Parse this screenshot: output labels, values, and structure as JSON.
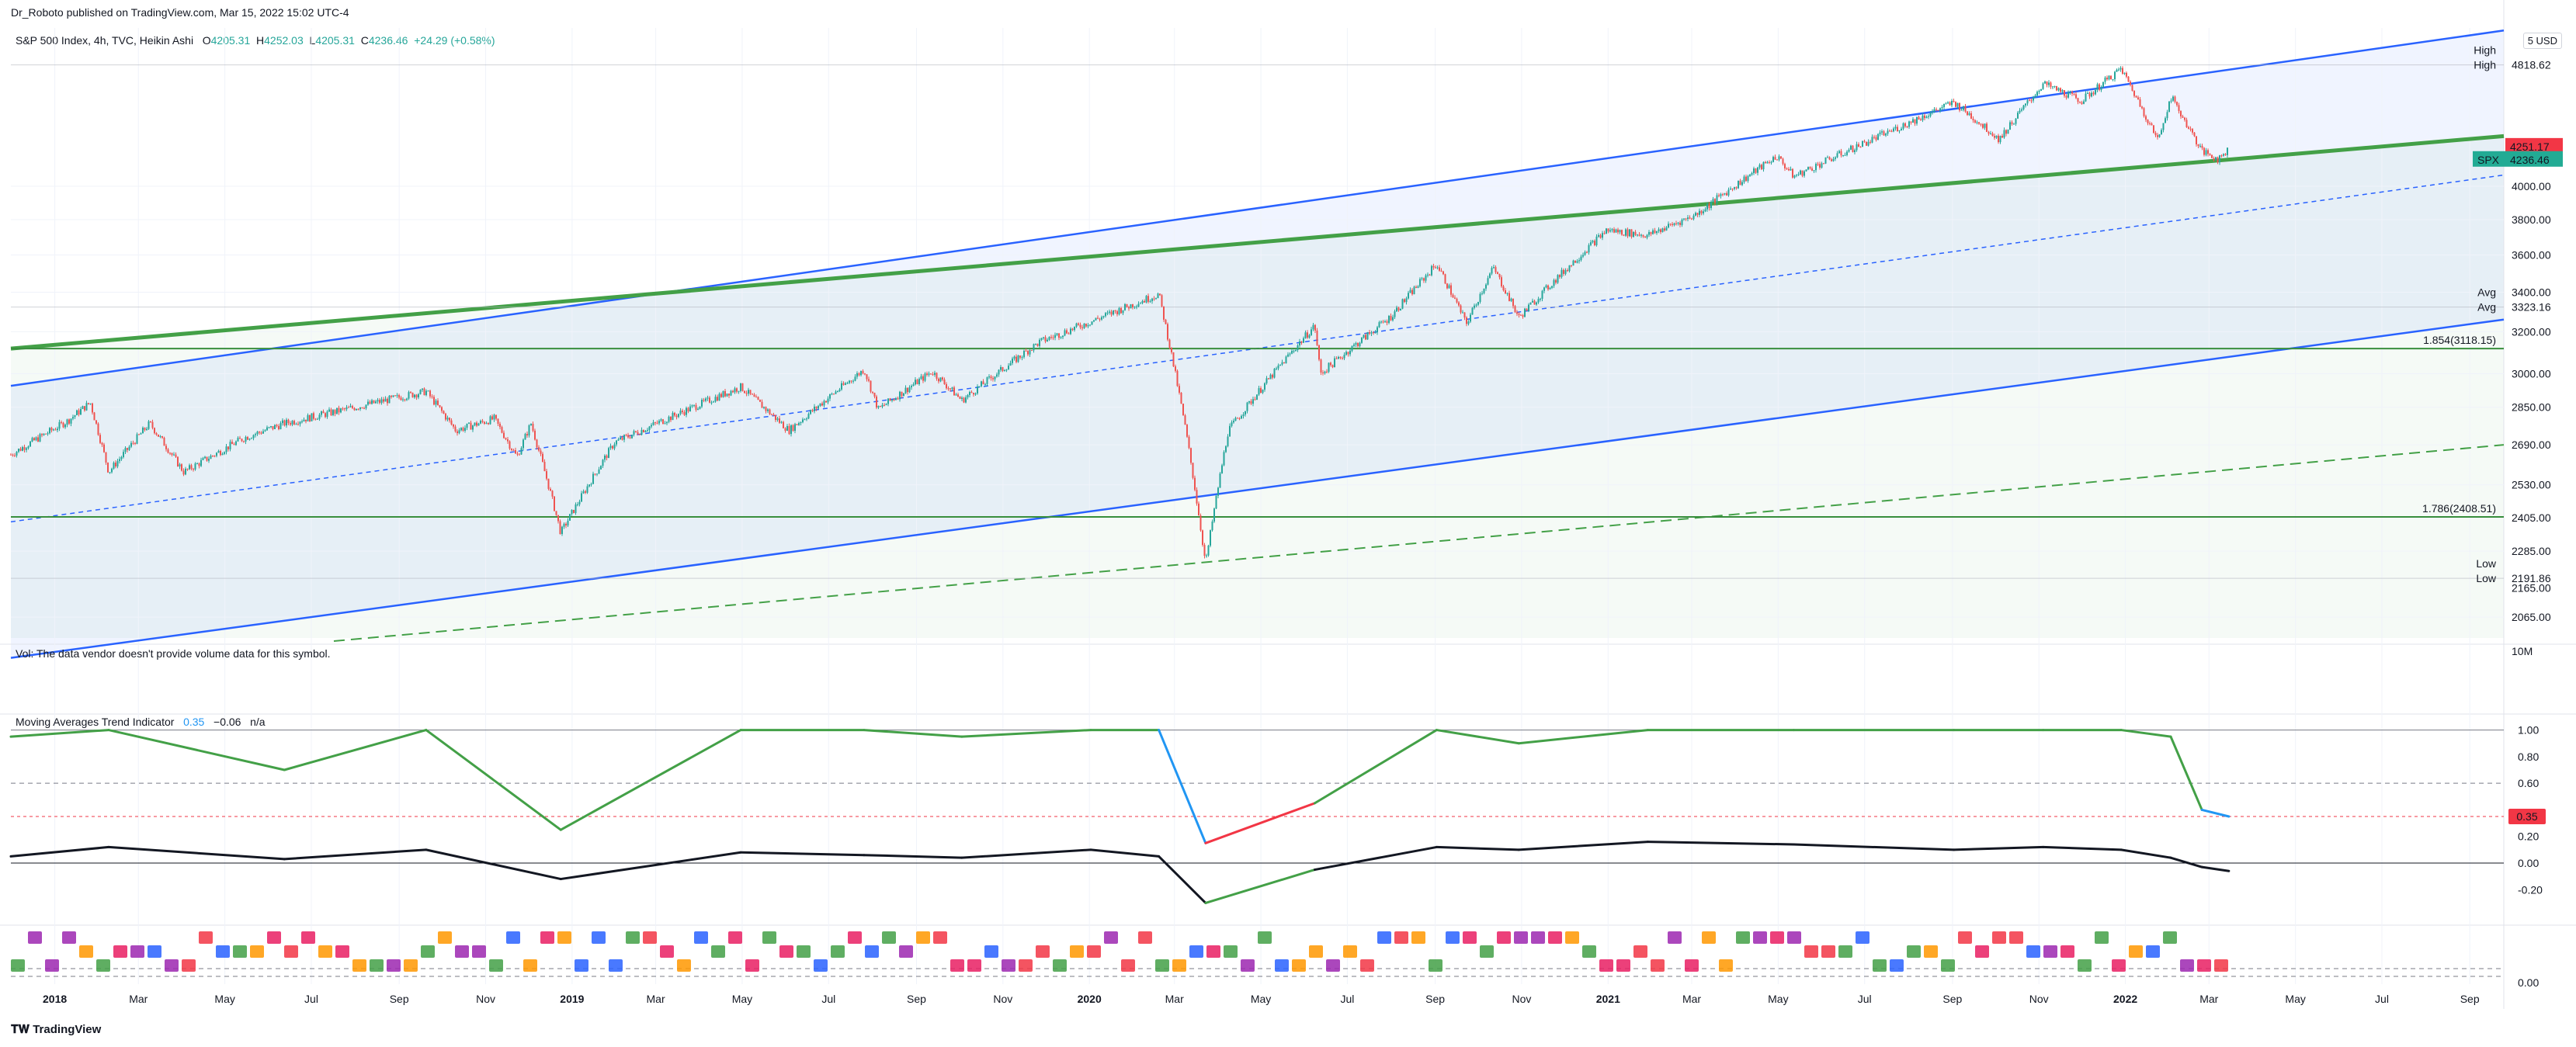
{
  "header": {
    "publisher": "Dr_Roboto published on TradingView.com, Mar 15, 2022 15:02 UTC-4",
    "symbol": "S&P 500 Index, 4h, TVC, Heikin Ashi",
    "ohlc": [
      {
        "k": "O",
        "v": "4205.31"
      },
      {
        "k": "H",
        "v": "4252.03"
      },
      {
        "k": "L",
        "v": "4205.31"
      },
      {
        "k": "C",
        "v": "4236.46"
      }
    ],
    "change": "+24.29 (+0.58%)",
    "currency": "USD",
    "currency_prefix": "5"
  },
  "volume": {
    "message": "Vol: The data vendor doesn't provide volume data for this symbol."
  },
  "indicator": {
    "name": "Moving Averages Trend Indicator",
    "v1": "0.35",
    "v2": "−0.06",
    "v3": "n/a",
    "current_label": "0.35"
  },
  "footer": {
    "brand": "TradingView"
  },
  "price_labels": {
    "high_tag": "High",
    "high_value": "4818.62",
    "current_red": "4251.17",
    "symbol_tag": "SPX",
    "symbol_value": "4236.46",
    "avg_tag": "Avg",
    "avg_value": "3323.16",
    "low_tag": "Low",
    "low_value": "2191.86",
    "fib1": "1.854(3118.15)",
    "fib2": "1.786(2408.51)",
    "volume_scale": "10M",
    "extra_low_label": "2165.00"
  },
  "colors": {
    "channel_blue": "#2962ff",
    "trend_green": "#43a047",
    "fib_green": "#388e3c",
    "candle_up": "#26a69a",
    "candle_down": "#ef5350",
    "red_label": "#f23645",
    "teal_label": "#22ab94"
  },
  "chart_data": {
    "type": "line",
    "title": "S&P 500 Index, 4h, TVC, Heikin Ashi",
    "x_ticks": [
      "2018",
      "Mar",
      "May",
      "Jul",
      "Sep",
      "Nov",
      "2019",
      "Mar",
      "May",
      "Jul",
      "Sep",
      "Nov",
      "2020",
      "Mar",
      "May",
      "Jul",
      "Sep",
      "Nov",
      "2021",
      "Mar",
      "May",
      "Jul",
      "Sep",
      "Nov",
      "2022",
      "Mar",
      "May",
      "Jul",
      "Sep"
    ],
    "x_range": [
      "2017-12",
      "2022-09"
    ],
    "price_axis_ticks": [
      "4000.00",
      "3800.00",
      "3600.00",
      "3400.00",
      "3200.00",
      "3000.00",
      "2850.00",
      "2690.00",
      "2530.00",
      "2405.00",
      "2285.00",
      "2065.00"
    ],
    "y_scale": "log",
    "ylim": [
      2000,
      5100
    ],
    "series": [
      {
        "name": "SPX",
        "x": [
          "2017-12-01",
          "2018-01-10",
          "2018-01-26",
          "2018-02-08",
          "2018-03-09",
          "2018-04-02",
          "2018-05-15",
          "2018-06-12",
          "2018-07-25",
          "2018-09-20",
          "2018-10-11",
          "2018-11-07",
          "2018-11-23",
          "2018-12-03",
          "2018-12-24",
          "2019-01-31",
          "2019-04-30",
          "2019-06-03",
          "2019-07-26",
          "2019-08-05",
          "2019-09-12",
          "2019-10-03",
          "2019-11-27",
          "2020-01-02",
          "2020-02-19",
          "2020-03-09",
          "2020-03-23",
          "2020-04-08",
          "2020-06-08",
          "2020-06-12",
          "2020-07-31",
          "2020-09-02",
          "2020-09-23",
          "2020-10-12",
          "2020-10-30",
          "2020-12-31",
          "2021-01-29",
          "2021-03-04",
          "2021-04-30",
          "2021-05-12",
          "2021-07-30",
          "2021-09-02",
          "2021-10-04",
          "2021-11-04",
          "2021-12-01",
          "2021-12-29",
          "2022-01-24",
          "2022-02-02",
          "2022-02-24",
          "2022-03-08",
          "2022-03-15"
        ],
        "y": [
          2650,
          2790,
          2870,
          2580,
          2780,
          2580,
          2720,
          2780,
          2840,
          2920,
          2750,
          2800,
          2640,
          2780,
          2350,
          2700,
          2940,
          2750,
          3020,
          2840,
          3010,
          2880,
          3150,
          3250,
          3390,
          2750,
          2240,
          2750,
          3230,
          3000,
          3270,
          3550,
          3240,
          3530,
          3270,
          3740,
          3710,
          3830,
          4190,
          4060,
          4400,
          4550,
          4300,
          4680,
          4560,
          4790,
          4290,
          4590,
          4220,
          4170,
          4236
        ]
      },
      {
        "name": "",
        "x": [
          "2017-12-01",
          "2018-02-08",
          "2018-06-12",
          "2018-09-20",
          "2018-12-24",
          "2019-04-30",
          "2019-07-26",
          "2019-10-03",
          "2020-01-02",
          "2020-02-19",
          "2020-03-23",
          "2020-06-08",
          "2020-09-02",
          "2020-10-30",
          "2021-01-29",
          "2021-05-12",
          "2021-09-02",
          "2021-11-04",
          "2021-12-29",
          "2022-02-02",
          "2022-02-24",
          "2022-03-15"
        ],
        "y": [
          0.95,
          1.0,
          0.7,
          1.0,
          0.25,
          1.0,
          1.0,
          0.95,
          1.0,
          1.0,
          0.15,
          0.45,
          1.0,
          0.9,
          1.0,
          1.0,
          1.0,
          1.0,
          1.0,
          0.95,
          0.4,
          0.35
        ]
      },
      {
        "name": "",
        "x": [
          "2017-12-01",
          "2018-02-08",
          "2018-06-12",
          "2018-09-20",
          "2018-12-24",
          "2019-04-30",
          "2019-07-26",
          "2019-10-03",
          "2020-01-02",
          "2020-02-19",
          "2020-03-23",
          "2020-06-08",
          "2020-09-02",
          "2020-10-30",
          "2021-01-29",
          "2021-05-12",
          "2021-09-02",
          "2021-11-04",
          "2021-12-29",
          "2022-02-02",
          "2022-02-24",
          "2022-03-15"
        ],
        "y": [
          0.05,
          0.12,
          0.03,
          0.1,
          -0.12,
          0.08,
          0.06,
          0.04,
          0.1,
          0.05,
          -0.3,
          -0.05,
          0.12,
          0.1,
          0.16,
          0.14,
          0.1,
          0.12,
          0.1,
          0.04,
          -0.03,
          -0.06
        ]
      }
    ],
    "indicator_axis_ticks": [
      "1.00",
      "0.80",
      "0.60",
      "0.20",
      "0.00",
      "-0.20"
    ],
    "indicator_ylim": [
      -0.35,
      1.05
    ],
    "bottom_axis_ticks": [
      "0.00"
    ],
    "fib_levels": [
      {
        "label": "1.854(3118.15)",
        "value": 3118.15
      },
      {
        "label": "1.786(2408.51)",
        "value": 2408.51
      }
    ],
    "horizontal_markers": [
      {
        "label": "High",
        "value": 4818.62
      },
      {
        "label": "Avg",
        "value": 3323.16
      },
      {
        "label": "Low",
        "value": 2191.86
      }
    ],
    "grid": true,
    "legend": "top-left"
  }
}
